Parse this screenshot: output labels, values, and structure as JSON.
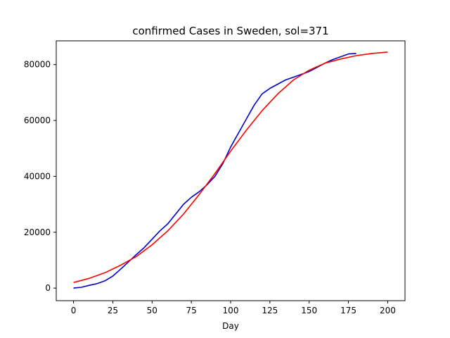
{
  "chart_data": {
    "type": "line",
    "title": "confirmed Cases in Sweden, sol=371",
    "xlabel": "Day",
    "ylabel": "",
    "xlim": [
      -11,
      211
    ],
    "ylim": [
      -4500,
      88500
    ],
    "grid": false,
    "x_ticks": [
      0,
      25,
      50,
      75,
      100,
      125,
      150,
      175,
      200
    ],
    "y_ticks": [
      0,
      20000,
      40000,
      60000,
      80000
    ],
    "x_tick_labels": [
      "0",
      "25",
      "50",
      "75",
      "100",
      "125",
      "150",
      "175",
      "200"
    ],
    "y_tick_labels": [
      "0",
      "20000",
      "40000",
      "60000",
      "80000"
    ],
    "series": [
      {
        "color": "#0000cc",
        "x": [
          0,
          5,
          10,
          15,
          20,
          25,
          30,
          35,
          40,
          45,
          50,
          55,
          60,
          65,
          70,
          75,
          80,
          85,
          90,
          95,
          100,
          105,
          110,
          115,
          120,
          125,
          130,
          135,
          140,
          145,
          150,
          155,
          160,
          165,
          170,
          175,
          180
        ],
        "y": [
          0,
          300,
          1000,
          1600,
          2600,
          4300,
          6800,
          9400,
          12000,
          14500,
          17500,
          20500,
          23000,
          26500,
          30000,
          32500,
          34500,
          37000,
          40000,
          44500,
          50500,
          55500,
          60500,
          65500,
          69500,
          71500,
          73000,
          74500,
          75500,
          76500,
          77500,
          79000,
          80500,
          81800,
          82800,
          83800,
          84000
        ]
      },
      {
        "color": "#ff0000",
        "x": [
          0,
          10,
          20,
          30,
          40,
          50,
          60,
          70,
          80,
          90,
          100,
          110,
          120,
          130,
          140,
          150,
          160,
          170,
          180,
          190,
          200
        ],
        "y": [
          2000,
          3500,
          5500,
          8200,
          11300,
          15500,
          20500,
          26500,
          33500,
          41000,
          49000,
          56500,
          63500,
          69500,
          74500,
          78000,
          80500,
          82000,
          83200,
          84000,
          84500
        ]
      }
    ]
  }
}
